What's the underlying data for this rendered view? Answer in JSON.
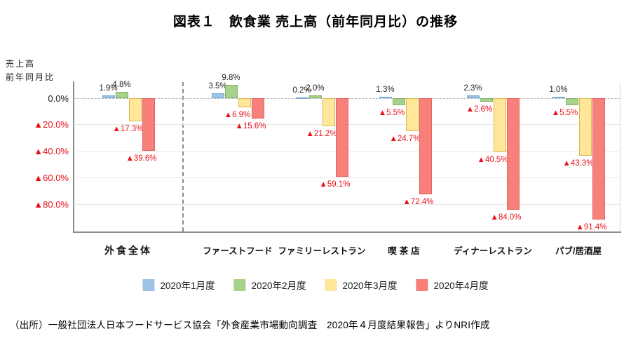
{
  "title": "図表１　飲食業 売上高（前年同月比）の推移",
  "y_axis_unit": {
    "line1": "売上高",
    "line2": "前年同月比"
  },
  "source": "（出所）一般社団法人日本フードサービス協会「外食産業市場動向調査　2020年４月度結果報告」よりNRI作成",
  "chart_data": {
    "type": "bar",
    "title": "図表１　飲食業 売上高（前年同月比）の推移",
    "ylabel": "売上高 前年同月比",
    "ylim": [
      -100,
      12
    ],
    "grid": true,
    "legend_position": "bottom",
    "categories": [
      "外食全体",
      "ファーストフード",
      "ファミリーレストラン",
      "喫茶店",
      "ディナーレストラン",
      "パブ/居酒屋"
    ],
    "y_ticks": [
      {
        "label": "0.0%",
        "value": 0
      },
      {
        "label": "▲20.0%",
        "value": -20
      },
      {
        "label": "▲40.0%",
        "value": -40
      },
      {
        "label": "▲60.0%",
        "value": -60
      },
      {
        "label": "▲80.0%",
        "value": -80
      }
    ],
    "series": [
      {
        "name": "2020年1月度",
        "color": "#9dc3e6",
        "border_color": "#74a9d8",
        "values": [
          1.9,
          3.5,
          0.2,
          1.3,
          2.3,
          1.0
        ],
        "labels": [
          "1.9%",
          "3.5%",
          "0.2%",
          "1.3%",
          "2.3%",
          "1.0%"
        ]
      },
      {
        "name": "2020年2月度",
        "color": "#a9d18e",
        "border_color": "#7fb35e",
        "values": [
          4.8,
          9.8,
          2.0,
          -5.5,
          -2.6,
          -5.5
        ],
        "labels": [
          "4.8%",
          "9.8%",
          "2.0%",
          "▲5.5%",
          "▲2.6%",
          "▲5.5%"
        ]
      },
      {
        "name": "2020年3月度",
        "color": "#ffe699",
        "border_color": "#d8b74e",
        "values": [
          -17.3,
          -6.9,
          -21.2,
          -24.7,
          -40.5,
          -43.3
        ],
        "labels": [
          "▲17.3%",
          "▲6.9%",
          "▲21.2%",
          "▲24.7%",
          "▲40.5%",
          "▲43.3%"
        ]
      },
      {
        "name": "2020年4月度",
        "color": "#f8807b",
        "border_color": "#e4625f",
        "values": [
          -39.6,
          -15.6,
          -59.1,
          -72.4,
          -84.0,
          -91.4
        ],
        "labels": [
          "▲39.6%",
          "▲15.6%",
          "▲59.1%",
          "▲72.4%",
          "▲84.0%",
          "▲91.4%"
        ]
      }
    ],
    "positive_label_color": "#262626",
    "negative_label_color": "#e8121c"
  }
}
